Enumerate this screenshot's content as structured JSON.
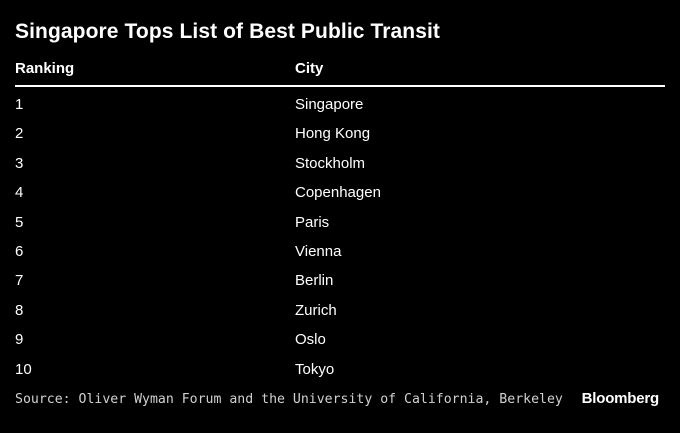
{
  "title": "Singapore Tops List of Best Public Transit",
  "source": "Source: Oliver Wyman Forum and the University of California, Berkeley",
  "brand": "Bloomberg",
  "colors": {
    "background": "#000000",
    "text": "#ffffff",
    "rule": "#ffffff",
    "source_text": "#d0d0d0"
  },
  "chart_data": {
    "type": "table",
    "title": "Singapore Tops List of Best Public Transit",
    "columns": [
      "Ranking",
      "City"
    ],
    "rows": [
      [
        "1",
        "Singapore"
      ],
      [
        "2",
        "Hong Kong"
      ],
      [
        "3",
        "Stockholm"
      ],
      [
        "4",
        "Copenhagen"
      ],
      [
        "5",
        "Paris"
      ],
      [
        "6",
        "Vienna"
      ],
      [
        "7",
        "Berlin"
      ],
      [
        "8",
        "Zurich"
      ],
      [
        "9",
        "Oslo"
      ],
      [
        "10",
        "Tokyo"
      ]
    ]
  }
}
